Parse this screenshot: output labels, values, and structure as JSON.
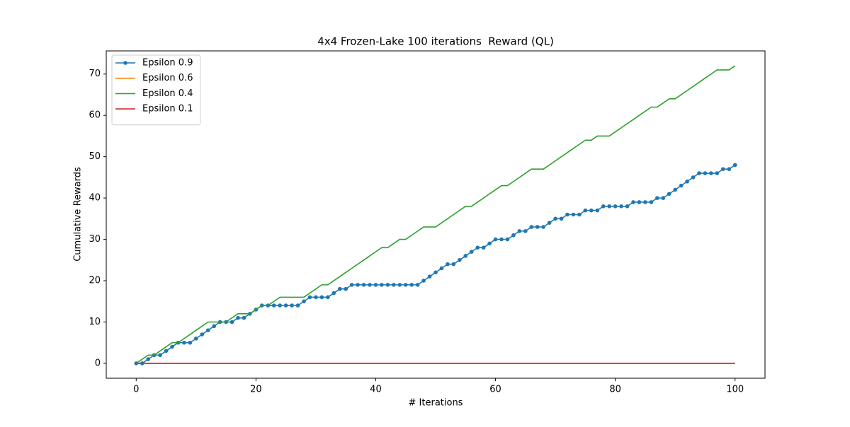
{
  "chart_data": {
    "type": "line",
    "title": "4x4 Frozen-Lake 100 iterations  Reward (QL)",
    "x_label": "# Iterations",
    "y_label": "Cumulative Rewards",
    "x": [
      0,
      1,
      2,
      3,
      4,
      5,
      6,
      7,
      8,
      9,
      10,
      11,
      12,
      13,
      14,
      15,
      16,
      17,
      18,
      19,
      20,
      21,
      22,
      23,
      24,
      25,
      26,
      27,
      28,
      29,
      30,
      31,
      32,
      33,
      34,
      35,
      36,
      37,
      38,
      39,
      40,
      41,
      42,
      43,
      44,
      45,
      46,
      47,
      48,
      49,
      50,
      51,
      52,
      53,
      54,
      55,
      56,
      57,
      58,
      59,
      60,
      61,
      62,
      63,
      64,
      65,
      66,
      67,
      68,
      69,
      70,
      71,
      72,
      73,
      74,
      75,
      76,
      77,
      78,
      79,
      80,
      81,
      82,
      83,
      84,
      85,
      86,
      87,
      88,
      89,
      90,
      91,
      92,
      93,
      94,
      95,
      96,
      97,
      98,
      99,
      100
    ],
    "series": [
      {
        "name": "Epsilon 0.9",
        "color": "#1f77b4",
        "marker": true,
        "values": [
          0,
          0,
          1,
          2,
          2,
          3,
          4,
          5,
          5,
          5,
          6,
          7,
          8,
          9,
          10,
          10,
          10,
          11,
          11,
          12,
          13,
          14,
          14,
          14,
          14,
          14,
          14,
          14,
          15,
          16,
          16,
          16,
          16,
          17,
          18,
          18,
          19,
          19,
          19,
          19,
          19,
          19,
          19,
          19,
          19,
          19,
          19,
          19,
          20,
          21,
          22,
          23,
          24,
          24,
          25,
          26,
          27,
          28,
          28,
          29,
          30,
          30,
          30,
          31,
          32,
          32,
          33,
          33,
          33,
          34,
          35,
          35,
          36,
          36,
          36,
          37,
          37,
          37,
          38,
          38,
          38,
          38,
          38,
          39,
          39,
          39,
          39,
          40,
          40,
          41,
          42,
          43,
          44,
          45,
          46,
          46,
          46,
          46,
          47,
          47,
          48
        ]
      },
      {
        "name": "Epsilon 0.6",
        "color": "#ff7f0e",
        "marker": false,
        "values": [
          0,
          0,
          0,
          0,
          0,
          0,
          0,
          0,
          0,
          0,
          0,
          0,
          0,
          0,
          0,
          0,
          0,
          0,
          0,
          0,
          0,
          0,
          0,
          0,
          0,
          0,
          0,
          0,
          0,
          0,
          0,
          0,
          0,
          0,
          0,
          0,
          0,
          0,
          0,
          0,
          0,
          0,
          0,
          0,
          0,
          0,
          0,
          0,
          0,
          0,
          0,
          0,
          0,
          0,
          0,
          0,
          0,
          0,
          0,
          0,
          0,
          0,
          0,
          0,
          0,
          0,
          0,
          0,
          0,
          0,
          0,
          0,
          0,
          0,
          0,
          0,
          0,
          0,
          0,
          0,
          0,
          0,
          0,
          0,
          0,
          0,
          0,
          0,
          0,
          0,
          0,
          0,
          0,
          0,
          0,
          0,
          0,
          0,
          0,
          0,
          0
        ]
      },
      {
        "name": "Epsilon 0.4",
        "color": "#2ca02c",
        "marker": false,
        "values": [
          0,
          1,
          2,
          2,
          3,
          4,
          5,
          5,
          6,
          7,
          8,
          9,
          10,
          10,
          10,
          10,
          11,
          12,
          12,
          12,
          13,
          14,
          14,
          15,
          16,
          16,
          16,
          16,
          16,
          17,
          18,
          19,
          19,
          20,
          21,
          22,
          23,
          24,
          25,
          26,
          27,
          28,
          28,
          29,
          30,
          30,
          31,
          32,
          33,
          33,
          33,
          34,
          35,
          36,
          37,
          38,
          38,
          39,
          40,
          41,
          42,
          43,
          43,
          44,
          45,
          46,
          47,
          47,
          47,
          48,
          49,
          50,
          51,
          52,
          53,
          54,
          54,
          55,
          55,
          55,
          56,
          57,
          58,
          59,
          60,
          61,
          62,
          62,
          63,
          64,
          64,
          65,
          66,
          67,
          68,
          69,
          70,
          71,
          71,
          71,
          72
        ]
      },
      {
        "name": "Epsilon 0.1",
        "color": "#d62728",
        "marker": false,
        "values": [
          0,
          0,
          0,
          0,
          0,
          0,
          0,
          0,
          0,
          0,
          0,
          0,
          0,
          0,
          0,
          0,
          0,
          0,
          0,
          0,
          0,
          0,
          0,
          0,
          0,
          0,
          0,
          0,
          0,
          0,
          0,
          0,
          0,
          0,
          0,
          0,
          0,
          0,
          0,
          0,
          0,
          0,
          0,
          0,
          0,
          0,
          0,
          0,
          0,
          0,
          0,
          0,
          0,
          0,
          0,
          0,
          0,
          0,
          0,
          0,
          0,
          0,
          0,
          0,
          0,
          0,
          0,
          0,
          0,
          0,
          0,
          0,
          0,
          0,
          0,
          0,
          0,
          0,
          0,
          0,
          0,
          0,
          0,
          0,
          0,
          0,
          0,
          0,
          0,
          0,
          0,
          0,
          0,
          0,
          0,
          0,
          0,
          0,
          0,
          0,
          0
        ]
      }
    ],
    "xlim": [
      -5,
      105
    ],
    "ylim": [
      -3.6,
      75.6
    ],
    "xticks": [
      0,
      20,
      40,
      60,
      80,
      100
    ],
    "yticks": [
      0,
      10,
      20,
      30,
      40,
      50,
      60,
      70
    ],
    "legend": "upper left",
    "grid": false
  }
}
